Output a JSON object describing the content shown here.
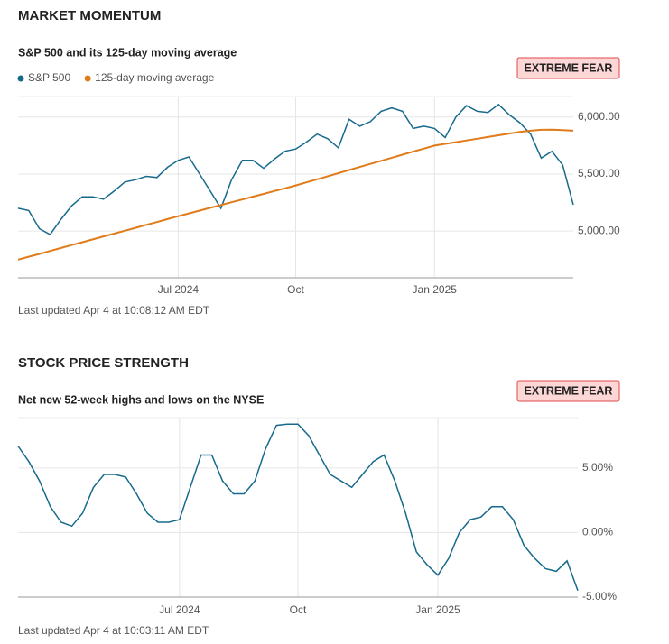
{
  "chart_data": [
    {
      "type": "line",
      "title": "MARKET MOMENTUM",
      "subtitle": "S&P 500 and its 125-day moving average",
      "badge": "EXTREME FEAR",
      "note": "Last updated Apr 4 at 10:08:12 AM EDT",
      "categories": [
        null,
        null,
        null,
        null,
        null,
        null,
        null,
        null,
        null,
        null,
        null,
        null,
        null,
        null,
        null,
        "Jul 2024",
        null,
        null,
        null,
        null,
        null,
        null,
        null,
        null,
        null,
        null,
        "Oct",
        null,
        null,
        null,
        null,
        null,
        null,
        null,
        null,
        null,
        null,
        null,
        null,
        "Jan 2025",
        null,
        null,
        null,
        null,
        null,
        null,
        null,
        null,
        null,
        null,
        null,
        null,
        null
      ],
      "series": [
        {
          "name": "S&P 500",
          "color": "#176a8c",
          "values": [
            5200,
            5180,
            5020,
            4970,
            5100,
            5220,
            5300,
            5300,
            5280,
            5350,
            5430,
            5450,
            5480,
            5470,
            5560,
            5620,
            5650,
            5500,
            5350,
            5200,
            5450,
            5620,
            5620,
            5550,
            5630,
            5700,
            5720,
            5780,
            5850,
            5810,
            5730,
            5980,
            5920,
            5960,
            6050,
            6080,
            6050,
            5900,
            5920,
            5900,
            5820,
            6000,
            6100,
            6050,
            6040,
            6110,
            6020,
            5950,
            5850,
            5640,
            5700,
            5580,
            5230
          ]
        },
        {
          "name": "125-day moving average",
          "color": "#e07b1a",
          "values": [
            4750,
            4775,
            4800,
            4826,
            4851,
            4877,
            4902,
            4927,
            4953,
            4978,
            5003,
            5028,
            5054,
            5079,
            5105,
            5130,
            5155,
            5179,
            5204,
            5228,
            5253,
            5277,
            5302,
            5326,
            5351,
            5375,
            5400,
            5427,
            5454,
            5481,
            5508,
            5535,
            5562,
            5589,
            5616,
            5643,
            5670,
            5697,
            5723,
            5750,
            5765,
            5780,
            5795,
            5810,
            5825,
            5840,
            5855,
            5870,
            5880,
            5888,
            5890,
            5886,
            5880
          ]
        }
      ],
      "ylim": [
        4590,
        6180
      ],
      "yticks": [
        {
          "value": 5000,
          "label": "5,000.00"
        },
        {
          "value": 5500,
          "label": "5,500.00"
        },
        {
          "value": 6000,
          "label": "6,000.00"
        }
      ],
      "grid": true,
      "legend": "top-left"
    },
    {
      "type": "line",
      "title": "STOCK PRICE STRENGTH",
      "subtitle": "Net new 52-week highs and lows on the NYSE",
      "badge": "EXTREME FEAR",
      "note": "Last updated Apr 4 at 10:03:11 AM EDT",
      "categories": [
        null,
        null,
        null,
        null,
        null,
        null,
        null,
        null,
        null,
        null,
        null,
        null,
        null,
        null,
        null,
        "Jul 2024",
        null,
        null,
        null,
        null,
        null,
        null,
        null,
        null,
        null,
        null,
        "Oct",
        null,
        null,
        null,
        null,
        null,
        null,
        null,
        null,
        null,
        null,
        null,
        null,
        "Jan 2025",
        null,
        null,
        null,
        null,
        null,
        null,
        null,
        null,
        null,
        null,
        null,
        null,
        null
      ],
      "series": [
        {
          "color": "#176a8c",
          "values": [
            6.7,
            5.5,
            4.0,
            2.0,
            0.8,
            0.5,
            1.5,
            3.5,
            4.5,
            4.5,
            4.3,
            3.0,
            1.5,
            0.8,
            0.8,
            1.0,
            3.5,
            6.0,
            6.0,
            4.0,
            3.0,
            3.0,
            4.0,
            6.5,
            8.3,
            8.4,
            8.4,
            7.5,
            6.0,
            4.5,
            4.0,
            3.5,
            4.5,
            5.5,
            6.0,
            4.0,
            1.5,
            -1.5,
            -2.5,
            -3.3,
            -2.0,
            0.0,
            1.0,
            1.2,
            2.0,
            2.0,
            1.0,
            -1.0,
            -2.0,
            -2.8,
            -3.0,
            -2.2,
            -4.5
          ]
        }
      ],
      "ylim": [
        -5,
        8.9
      ],
      "yticks": [
        {
          "value": -5,
          "label": "-5.00%"
        },
        {
          "value": 0,
          "label": "0.00%"
        },
        {
          "value": 5,
          "label": "5.00%"
        }
      ],
      "grid": true
    }
  ]
}
